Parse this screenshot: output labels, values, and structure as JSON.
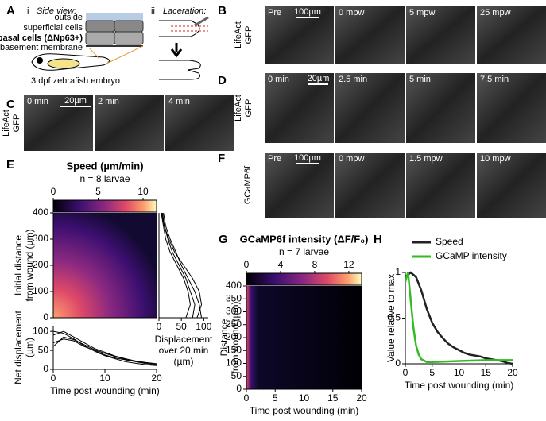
{
  "panels": {
    "A": {
      "label": "A",
      "i": "i",
      "side_view": "Side view:",
      "outside": "outside",
      "superficial": "superficial cells",
      "basal": "basal cells (ΔNp63+)",
      "membrane": "basement membrane",
      "embryo": "3 dpf zebrafish embryo",
      "ii": "ii",
      "laceration": "Laceration:"
    },
    "B": {
      "label": "B",
      "channel": [
        "LifeAct",
        "GFP"
      ],
      "frames": [
        "Pre",
        "0 mpw",
        "5 mpw",
        "25 mpw"
      ],
      "scale": "100µm"
    },
    "C": {
      "label": "C",
      "channel": [
        "LifeAct",
        "GFP"
      ],
      "frames": [
        "0 min",
        "2 min",
        "4 min"
      ],
      "scale": "20µm"
    },
    "D": {
      "label": "D",
      "channel": [
        "LifeAct",
        "GFP"
      ],
      "frames": [
        "0 min",
        "2.5 min",
        "5 min",
        "7.5 min"
      ],
      "scale": "20µm"
    },
    "F": {
      "label": "F",
      "channel": [
        "GCaMP6f"
      ],
      "frames": [
        "Pre",
        "0 mpw",
        "1.5 mpw",
        "10 mpw"
      ],
      "scale": "100µm"
    },
    "E": {
      "label": "E"
    },
    "G": {
      "label": "G"
    },
    "H": {
      "label": "H"
    }
  },
  "chart_data": [
    {
      "type": "heatmap",
      "title": "Speed (µm/min)",
      "subtitle": "n = 8 larvae",
      "clim": [
        0,
        11.5
      ],
      "cticks": [
        0,
        5,
        10
      ],
      "ylim": [
        0,
        400
      ],
      "yticks": [
        0,
        100,
        200,
        300,
        400
      ],
      "ylabel": [
        "Initial distance",
        "from wound (µm)"
      ],
      "xlim": [
        0,
        20
      ]
    },
    {
      "type": "line",
      "orient": "vertical",
      "xlim": [
        0,
        110
      ],
      "xticks": [
        0,
        50,
        100
      ],
      "ylim": [
        0,
        400
      ],
      "xlabel": [
        "Displacement",
        "over 20 min",
        "(µm)"
      ],
      "y": [
        0,
        50,
        100,
        150,
        200,
        250,
        300,
        350,
        400
      ],
      "series": [
        {
          "color": "#000000",
          "values": [
            75,
            80,
            70,
            60,
            45,
            30,
            20,
            12,
            8
          ]
        },
        {
          "color": "#000000",
          "values": [
            95,
            90,
            80,
            65,
            50,
            38,
            25,
            15,
            10
          ]
        },
        {
          "color": "#000000",
          "values": [
            60,
            70,
            65,
            55,
            40,
            25,
            15,
            10,
            5
          ]
        },
        {
          "color": "#000000",
          "values": [
            85,
            95,
            90,
            75,
            55,
            35,
            22,
            12,
            6
          ]
        }
      ]
    },
    {
      "type": "line",
      "xlim": [
        0,
        20
      ],
      "xticks": [
        0,
        10,
        20
      ],
      "ylim": [
        0,
        115
      ],
      "yticks": [
        0,
        50,
        100
      ],
      "xlabel": [
        "Time post wounding (min)"
      ],
      "ylabel": [
        "Net displacement",
        "(µm)"
      ],
      "x": [
        0,
        2,
        4,
        6,
        8,
        10,
        12,
        14,
        16,
        18,
        20
      ],
      "series": [
        {
          "color": "#000000",
          "values": [
            90,
            100,
            85,
            70,
            55,
            45,
            35,
            28,
            22,
            18,
            15
          ]
        },
        {
          "color": "#000000",
          "values": [
            70,
            80,
            75,
            60,
            50,
            38,
            30,
            25,
            20,
            15,
            12
          ]
        },
        {
          "color": "#000000",
          "values": [
            100,
            95,
            80,
            62,
            48,
            36,
            28,
            20,
            16,
            12,
            10
          ]
        },
        {
          "color": "#000000",
          "values": [
            60,
            85,
            78,
            65,
            52,
            42,
            34,
            26,
            20,
            17,
            14
          ]
        }
      ]
    },
    {
      "type": "heatmap",
      "title": "GCaMP6f intensity (ΔF/F₀)",
      "subtitle": "n = 7 larvae",
      "clim": [
        0,
        13.5
      ],
      "cticks": [
        0,
        4,
        8,
        12
      ],
      "ylim": [
        0,
        400
      ],
      "yticks": [
        0,
        50,
        100,
        150,
        200,
        250,
        300,
        350,
        400
      ],
      "xlim": [
        0,
        20
      ],
      "xticks": [
        0,
        5,
        10,
        15,
        20
      ],
      "xlabel": [
        "Time post wounding (min)"
      ],
      "ylabel": [
        "Distance",
        "from wound (µm)"
      ]
    },
    {
      "type": "line",
      "xlim": [
        0,
        20
      ],
      "xticks": [
        0,
        5,
        10,
        15,
        20
      ],
      "ylim": [
        0,
        1
      ],
      "yticks": [
        0,
        0.5,
        1
      ],
      "xlabel": [
        "Time post wounding (min)"
      ],
      "ylabel": [
        "Value relative to max"
      ],
      "legend": "upper right",
      "series": [
        {
          "name": "Speed",
          "color": "#222222",
          "x": [
            0,
            1,
            2,
            3,
            4,
            5,
            6,
            7,
            8,
            9,
            10,
            11,
            12,
            13,
            14,
            15,
            16,
            17,
            18,
            19,
            20
          ],
          "values": [
            0.95,
            1,
            0.95,
            0.8,
            0.6,
            0.45,
            0.35,
            0.28,
            0.22,
            0.18,
            0.15,
            0.12,
            0.1,
            0.09,
            0.08,
            0.06,
            0.05,
            0.04,
            0.03,
            0.01,
            0
          ]
        },
        {
          "name": "GCaMP intensity",
          "color": "#33bb22",
          "x": [
            0,
            0.5,
            1,
            1.5,
            2,
            2.5,
            3,
            4,
            5,
            10,
            15,
            20
          ],
          "values": [
            0.9,
            1,
            0.7,
            0.4,
            0.2,
            0.1,
            0.05,
            0.02,
            0.02,
            0.03,
            0.04,
            0.04
          ]
        }
      ]
    }
  ]
}
